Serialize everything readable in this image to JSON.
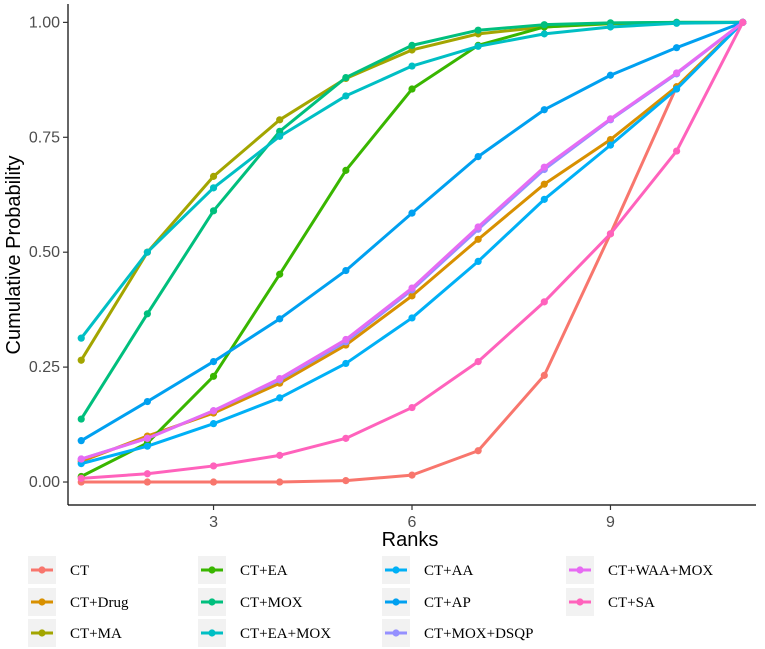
{
  "chart_data": {
    "type": "line",
    "title": "",
    "xlabel": "Ranks",
    "ylabel": "Cumulative Probability",
    "xlim": [
      0.8,
      11.2
    ],
    "ylim": [
      -0.05,
      1.04
    ],
    "x_ticks": [
      3,
      6,
      9
    ],
    "y_ticks": [
      0.0,
      0.25,
      0.5,
      0.75,
      1.0
    ],
    "x_tick_labels": [
      "3",
      "6",
      "9"
    ],
    "y_tick_labels": [
      "0.00",
      "0.25",
      "0.50",
      "0.75",
      "1.00"
    ],
    "grid": false,
    "legend_position": "bottom",
    "x": [
      1,
      2,
      3,
      4,
      5,
      6,
      7,
      8,
      9,
      10,
      11
    ],
    "series": [
      {
        "name": "CT",
        "color": "#F8766D",
        "values": [
          0.0,
          0.0,
          0.0,
          0.0,
          0.003,
          0.015,
          0.068,
          0.232,
          0.54,
          0.86,
          1.0
        ]
      },
      {
        "name": "CT+Drug",
        "color": "#D89000",
        "values": [
          0.045,
          0.1,
          0.15,
          0.215,
          0.298,
          0.405,
          0.528,
          0.648,
          0.745,
          0.86,
          1.0
        ]
      },
      {
        "name": "CT+MA",
        "color": "#A3A500",
        "values": [
          0.265,
          0.5,
          0.665,
          0.788,
          0.878,
          0.94,
          0.975,
          0.99,
          0.997,
          0.999,
          1.0
        ]
      },
      {
        "name": "CT+EA",
        "color": "#39B600",
        "values": [
          0.012,
          0.085,
          0.23,
          0.452,
          0.678,
          0.855,
          0.95,
          0.99,
          0.998,
          1.0,
          1.0
        ]
      },
      {
        "name": "CT+MOX",
        "color": "#00BF7D",
        "values": [
          0.137,
          0.366,
          0.59,
          0.763,
          0.88,
          0.95,
          0.983,
          0.995,
          0.999,
          1.0,
          1.0
        ]
      },
      {
        "name": "CT+EA+MOX",
        "color": "#00BFC4",
        "values": [
          0.313,
          0.5,
          0.64,
          0.752,
          0.84,
          0.905,
          0.948,
          0.975,
          0.99,
          0.998,
          1.0
        ]
      },
      {
        "name": "CT+AA",
        "color": "#00B0F6",
        "values": [
          0.04,
          0.078,
          0.127,
          0.183,
          0.258,
          0.357,
          0.48,
          0.615,
          0.733,
          0.855,
          1.0
        ]
      },
      {
        "name": "CT+AP",
        "color": "#00A0F0",
        "values": [
          0.09,
          0.175,
          0.262,
          0.355,
          0.46,
          0.585,
          0.708,
          0.81,
          0.885,
          0.945,
          1.0
        ]
      },
      {
        "name": "CT+MOX+DSQP",
        "color": "#9590FF",
        "values": [
          0.05,
          0.095,
          0.155,
          0.222,
          0.305,
          0.418,
          0.55,
          0.68,
          0.788,
          0.888,
          1.0
        ]
      },
      {
        "name": "CT+WAA+MOX",
        "color": "#E76BF3",
        "values": [
          0.05,
          0.095,
          0.155,
          0.225,
          0.31,
          0.422,
          0.555,
          0.685,
          0.79,
          0.89,
          1.0
        ]
      },
      {
        "name": "CT+SA",
        "color": "#FF62BC",
        "values": [
          0.008,
          0.018,
          0.035,
          0.058,
          0.095,
          0.162,
          0.262,
          0.392,
          0.54,
          0.72,
          1.0
        ]
      }
    ]
  }
}
